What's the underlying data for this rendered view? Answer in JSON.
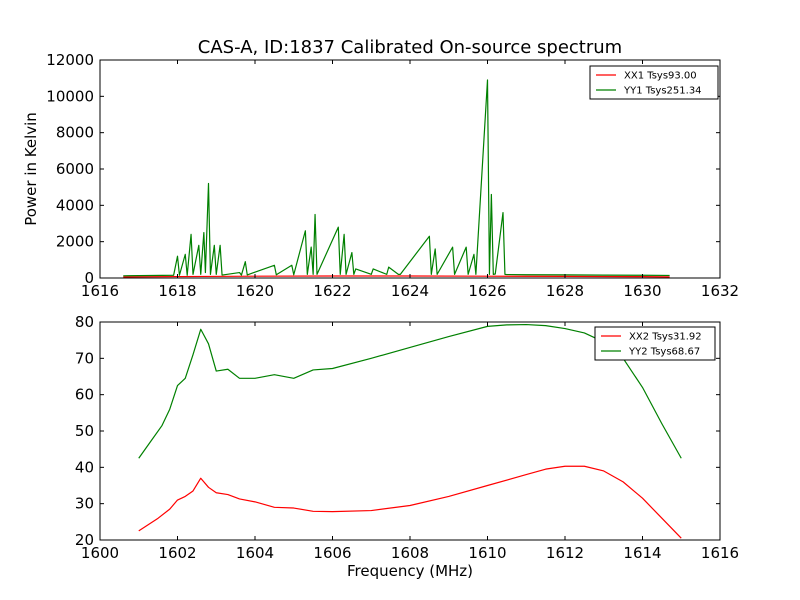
{
  "figure": {
    "title": "CAS-A, ID:1837 Calibrated On-source spectrum"
  },
  "chart_data": [
    {
      "type": "line",
      "title": "CAS-A, ID:1837 Calibrated On-source spectrum",
      "xlabel": "",
      "ylabel": "Power in Kelvin",
      "xlim": [
        1616,
        1632
      ],
      "ylim": [
        0,
        12000
      ],
      "x_ticks": [
        1616,
        1618,
        1620,
        1622,
        1624,
        1626,
        1628,
        1630,
        1632
      ],
      "y_ticks": [
        0,
        2000,
        4000,
        6000,
        8000,
        10000,
        12000
      ],
      "grid": false,
      "legend_position": "top-right",
      "series": [
        {
          "name": "XX1 Tsys93.00",
          "color": "#ff0000",
          "x": [
            1616.6,
            1618,
            1620,
            1622,
            1624,
            1626,
            1628,
            1630,
            1630.7
          ],
          "y": [
            60,
            80,
            100,
            110,
            110,
            100,
            90,
            75,
            60
          ]
        },
        {
          "name": "YY1 Tsys251.34",
          "color": "#008000",
          "x": [
            1616.6,
            1617.9,
            1618.0,
            1618.05,
            1618.2,
            1618.25,
            1618.35,
            1618.4,
            1618.55,
            1618.6,
            1618.68,
            1618.72,
            1618.8,
            1618.85,
            1618.95,
            1619.0,
            1619.1,
            1619.15,
            1619.6,
            1619.65,
            1619.75,
            1619.8,
            1620.5,
            1620.55,
            1620.95,
            1621.0,
            1621.3,
            1621.35,
            1621.45,
            1621.5,
            1621.55,
            1621.6,
            1622.15,
            1622.2,
            1622.3,
            1622.35,
            1622.5,
            1622.55,
            1622.6,
            1623.0,
            1623.05,
            1623.4,
            1623.45,
            1623.7,
            1623.75,
            1624.5,
            1624.55,
            1624.65,
            1624.7,
            1625.1,
            1625.15,
            1625.45,
            1625.5,
            1625.65,
            1625.7,
            1626.0,
            1626.05,
            1626.1,
            1626.15,
            1626.2,
            1626.4,
            1626.45,
            1626.5,
            1627.0,
            1628.0,
            1629.0,
            1630.0,
            1630.7
          ],
          "y": [
            120,
            150,
            1200,
            150,
            1300,
            150,
            2400,
            200,
            1800,
            200,
            2500,
            300,
            5200,
            200,
            1800,
            200,
            1800,
            160,
            300,
            160,
            900,
            170,
            700,
            180,
            700,
            180,
            2600,
            200,
            1700,
            200,
            3500,
            200,
            2800,
            200,
            2400,
            200,
            1400,
            200,
            500,
            200,
            500,
            200,
            600,
            200,
            200,
            2300,
            200,
            1600,
            200,
            1700,
            200,
            1700,
            200,
            1300,
            200,
            10900,
            200,
            4600,
            200,
            220,
            3600,
            200,
            190,
            180,
            170,
            160,
            150,
            140
          ]
        }
      ]
    },
    {
      "type": "line",
      "title": "",
      "xlabel": "Frequency (MHz)",
      "ylabel": "",
      "xlim": [
        1600,
        1616
      ],
      "ylim": [
        20,
        80
      ],
      "x_ticks": [
        1600,
        1602,
        1604,
        1606,
        1608,
        1610,
        1612,
        1614,
        1616
      ],
      "y_ticks": [
        20,
        30,
        40,
        50,
        60,
        70,
        80
      ],
      "grid": false,
      "legend_position": "top-right",
      "series": [
        {
          "name": "XX2 Tsys31.92",
          "color": "#ff0000",
          "x": [
            1601.0,
            1601.5,
            1601.8,
            1602.0,
            1602.2,
            1602.4,
            1602.6,
            1602.8,
            1603.0,
            1603.3,
            1603.6,
            1604.0,
            1604.5,
            1605.0,
            1605.5,
            1606.0,
            1607.0,
            1608.0,
            1609.0,
            1610.0,
            1611.0,
            1611.5,
            1612.0,
            1612.5,
            1613.0,
            1613.5,
            1614.0,
            1614.5,
            1615.0
          ],
          "y": [
            22.5,
            26,
            28.5,
            31,
            32,
            33.5,
            37,
            34.5,
            33,
            32.5,
            31.3,
            30.5,
            29,
            28.8,
            27.9,
            27.8,
            28.1,
            29.5,
            32,
            35,
            38,
            39.5,
            40.3,
            40.3,
            39,
            36,
            31.5,
            26,
            20.5
          ]
        },
        {
          "name": "YY2 Tsys68.67",
          "color": "#008000",
          "x": [
            1601.0,
            1601.3,
            1601.6,
            1601.8,
            1602.0,
            1602.2,
            1602.4,
            1602.6,
            1602.8,
            1603.0,
            1603.3,
            1603.6,
            1604.0,
            1604.5,
            1605.0,
            1605.5,
            1606.0,
            1607.0,
            1608.0,
            1609.0,
            1610.0,
            1610.5,
            1611.0,
            1611.5,
            1612.0,
            1612.5,
            1613.0,
            1613.5,
            1614.0,
            1614.5,
            1615.0
          ],
          "y": [
            42.5,
            47,
            51.5,
            56,
            62.5,
            64.5,
            71,
            78,
            74,
            66.5,
            67,
            64.5,
            64.5,
            65.5,
            64.5,
            66.8,
            67.2,
            70,
            73,
            76,
            78.8,
            79.2,
            79.3,
            79,
            78.2,
            77,
            74.5,
            70,
            62,
            52,
            42.5
          ]
        }
      ]
    }
  ]
}
